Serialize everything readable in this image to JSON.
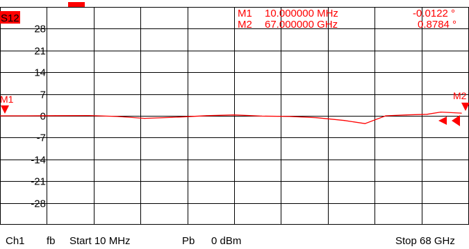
{
  "colors": {
    "trace": "#ff0000",
    "grid": "#000000",
    "background": "#ffffff",
    "text": "#000000"
  },
  "trace_label": "S12",
  "markers": [
    {
      "name": "M1",
      "frequency": "10.000000 MHz",
      "value": "-0.0122 °"
    },
    {
      "name": "M2",
      "frequency": "67.000000 GHz",
      "value": "0.8784 °"
    }
  ],
  "marker_flags": {
    "m1": "M1",
    "m2": "M2"
  },
  "y_ticks": [
    "28",
    "21",
    "14",
    "7",
    "0",
    "-7",
    "-14",
    "-21",
    "-28"
  ],
  "footer": {
    "channel": "Ch1",
    "mode": "fb",
    "start": "Start 10 MHz",
    "power_label": "Pb",
    "power": "0 dBm",
    "stop": "Stop 68 GHz"
  },
  "chart_data": {
    "type": "line",
    "x_unit": "GHz",
    "xlim": [
      0.01,
      68
    ],
    "ylim": [
      -35,
      35
    ],
    "y_ticks": [
      28,
      21,
      14,
      7,
      0,
      -7,
      -14,
      -21,
      -28
    ],
    "grid": true,
    "series": [
      {
        "name": "S12",
        "color": "#ff0000",
        "x": [
          0.01,
          4,
          8,
          13,
          17,
          21,
          25,
          27,
          30,
          34,
          38,
          42,
          46,
          50,
          53,
          56,
          59,
          62,
          64,
          67
        ],
        "y": [
          -0.01,
          0.0,
          0.05,
          0.1,
          -0.2,
          -0.8,
          -0.5,
          -0.3,
          0.05,
          0.3,
          -0.1,
          -0.2,
          -0.6,
          -1.5,
          -2.5,
          0.0,
          0.3,
          0.5,
          1.2,
          0.88
        ]
      }
    ]
  }
}
